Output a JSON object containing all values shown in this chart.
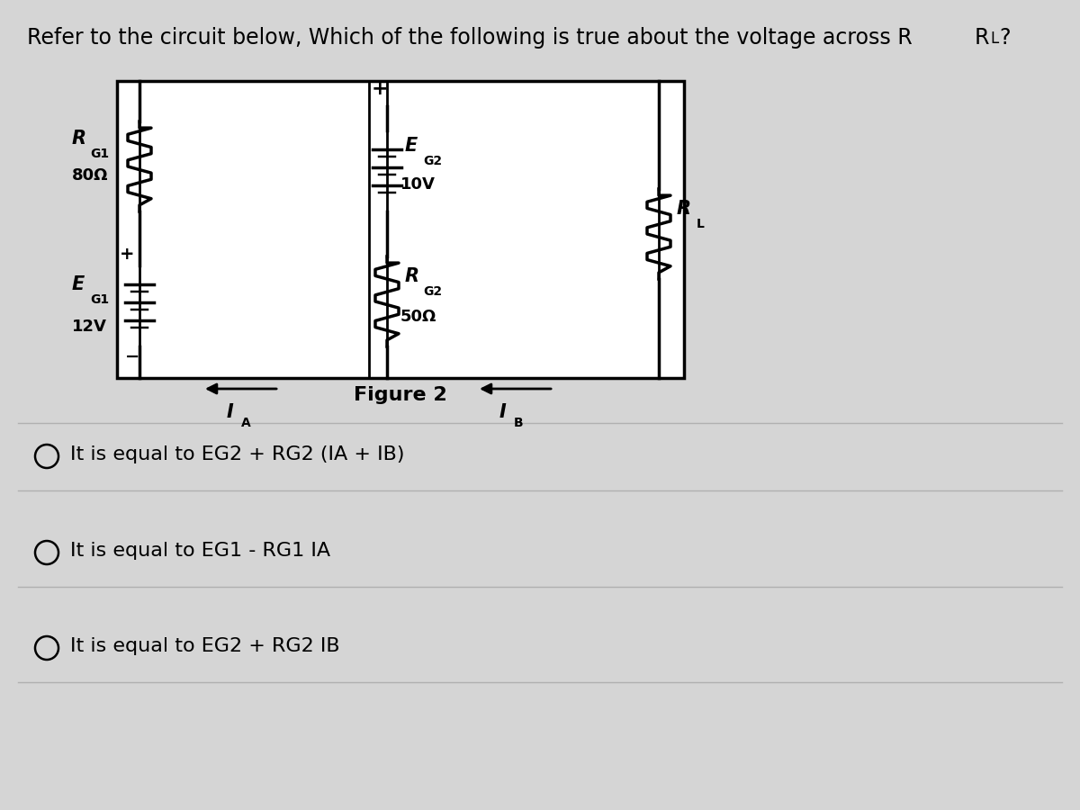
{
  "bg_color": "#d5d5d5",
  "title": "Refer to the circuit below, Which of the following is true about the voltage across R",
  "title_RL": "L",
  "title_end": "?",
  "figure_label": "Figure 2",
  "options": [
    "It is equal to EG2 + RG2 (IA + IB)",
    "It is equal to EG1 - RG1 IA",
    "It is equal to EG2 + RG2 IB"
  ],
  "rg1_val": "80Ω",
  "eg1_val": "12V",
  "eg2_val": "10V",
  "rg2_val": "50Ω"
}
